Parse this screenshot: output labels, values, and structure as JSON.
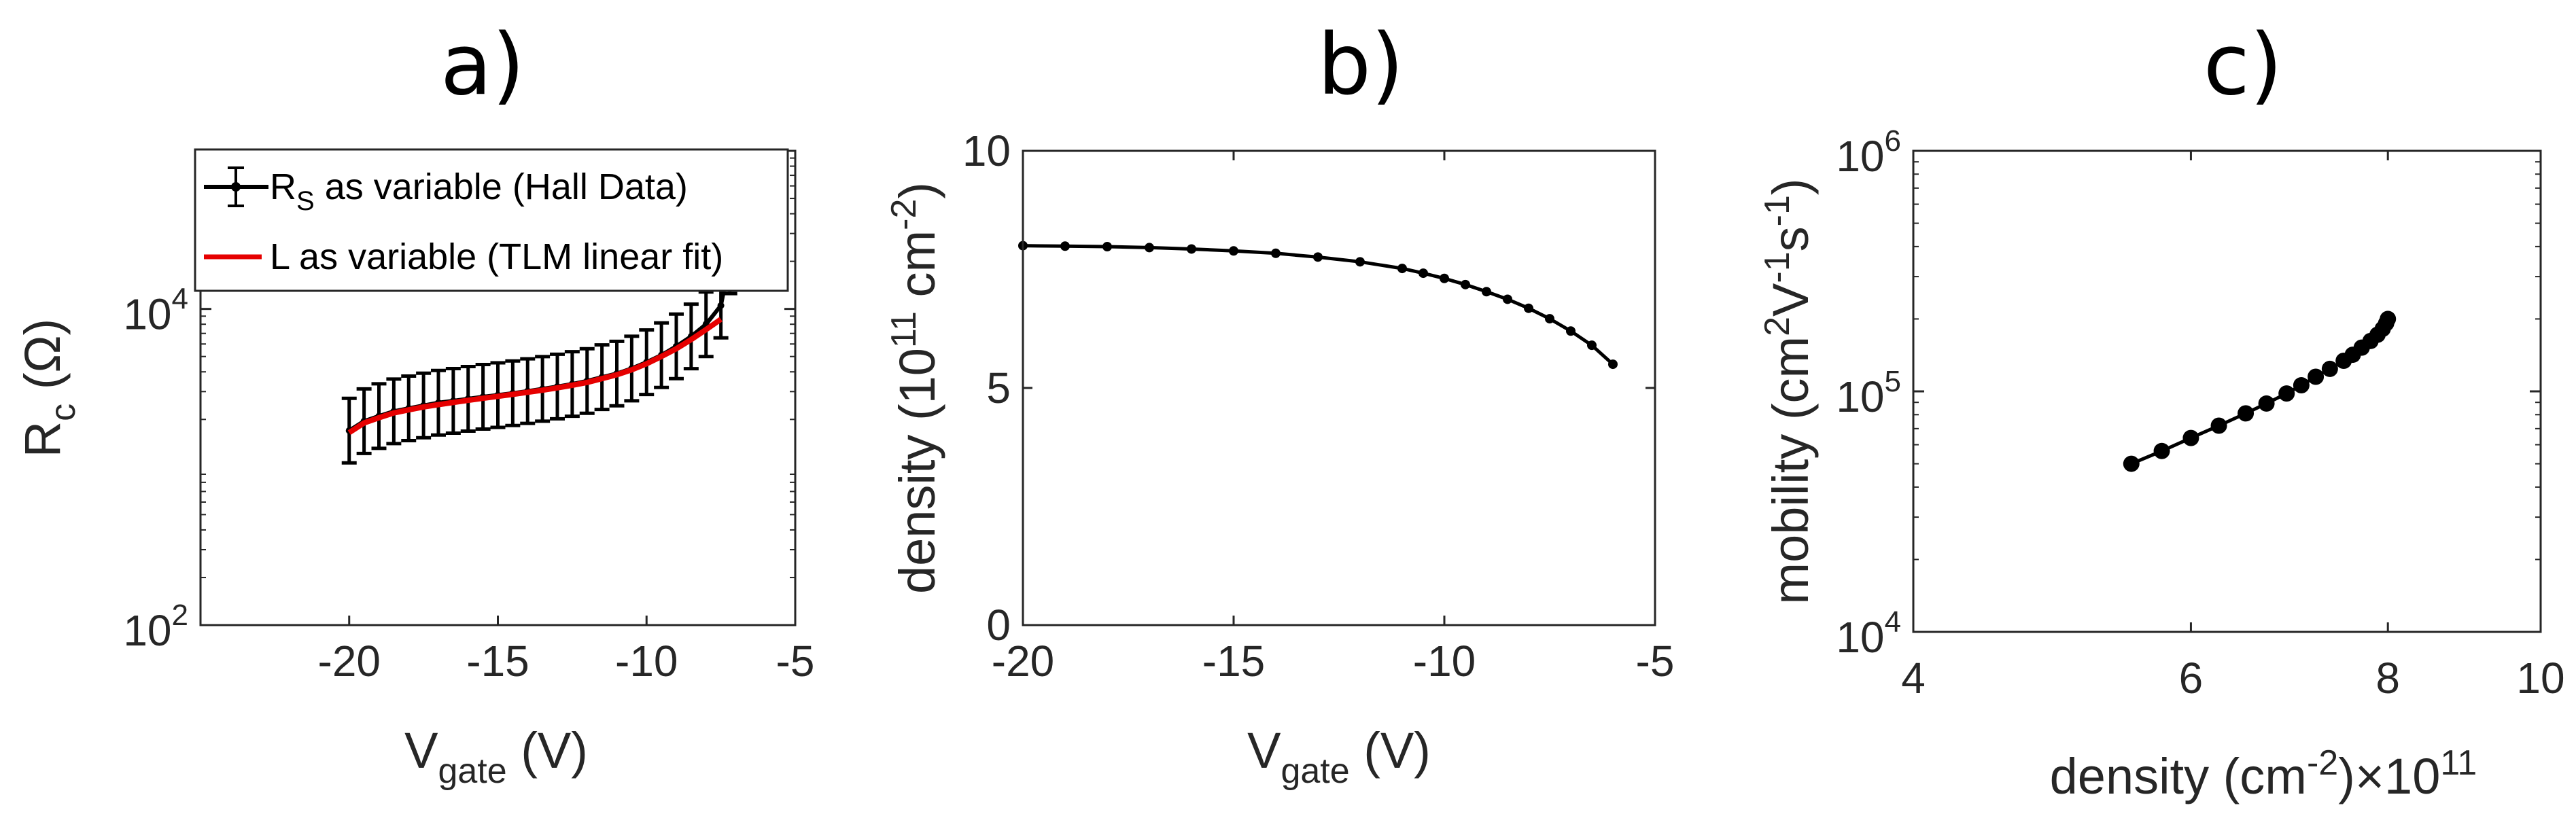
{
  "colors": {
    "axis": "#262626",
    "series_black": "#000000",
    "series_red": "#e60000"
  },
  "chart_data": [
    {
      "panel_label": "a)",
      "type": "line",
      "log_y": true,
      "xlim": [
        -25,
        -5
      ],
      "ylim": [
        100,
        100000
      ],
      "x_ticks": [
        -20,
        -15,
        -10,
        -5
      ],
      "x_tick_labels": [
        "-20",
        "-15",
        "-10",
        "-5"
      ],
      "y_ticks": [
        {
          "value": 100,
          "base": "10",
          "exp": "2"
        },
        {
          "value": 10000,
          "base": "10",
          "exp": "4"
        }
      ],
      "xlabel": {
        "main": "V",
        "sub": "gate",
        "rest": " (V)"
      },
      "ylabel": {
        "main": "R",
        "sub": "c",
        "rest": " (Ω)"
      },
      "legend_position": "top-left",
      "series": [
        {
          "name_main": "R",
          "name_sub": "S",
          "name_rest": " as variable (Hall Data)",
          "style": "errorbar",
          "color": "#000000",
          "x": [
            -20,
            -19.5,
            -19,
            -18.5,
            -18,
            -17.5,
            -17,
            -16.5,
            -16,
            -15.5,
            -15,
            -14.5,
            -14,
            -13.5,
            -13,
            -12.5,
            -12,
            -11.5,
            -11,
            -10.5,
            -10,
            -9.5,
            -9,
            -8.5,
            -8,
            -7.5,
            -7.2,
            -7.0
          ],
          "y": [
            1700,
            1950,
            2100,
            2250,
            2350,
            2450,
            2550,
            2620,
            2700,
            2780,
            2850,
            2930,
            3020,
            3120,
            3230,
            3350,
            3500,
            3700,
            3900,
            4200,
            4600,
            5100,
            5800,
            6700,
            8000,
            10500,
            20000,
            45000
          ],
          "err_factor": 1.6
        },
        {
          "name_main": "L",
          "name_sub": "",
          "name_rest": " as variable (TLM linear fit)",
          "style": "line",
          "color": "#e60000",
          "x": [
            -20,
            -19.5,
            -19,
            -18.5,
            -18,
            -17.5,
            -17,
            -16.5,
            -16,
            -15.5,
            -15,
            -14.5,
            -14,
            -13.5,
            -13,
            -12.5,
            -12,
            -11.5,
            -11,
            -10.5,
            -10,
            -9.5,
            -9,
            -8.5,
            -8,
            -7.5
          ],
          "y": [
            1650,
            1900,
            2050,
            2200,
            2300,
            2400,
            2480,
            2560,
            2640,
            2720,
            2800,
            2880,
            2970,
            3060,
            3170,
            3290,
            3430,
            3620,
            3830,
            4120,
            4500,
            5000,
            5600,
            6400,
            7400,
            8600
          ]
        }
      ]
    },
    {
      "panel_label": "b)",
      "type": "line",
      "log_y": false,
      "xlim": [
        -20,
        -5
      ],
      "ylim": [
        0,
        10
      ],
      "x_ticks": [
        -20,
        -15,
        -10,
        -5
      ],
      "x_tick_labels": [
        "-20",
        "-15",
        "-10",
        "-5"
      ],
      "y_ticks": [
        0,
        5,
        10
      ],
      "y_tick_labels": [
        "0",
        "5",
        "10"
      ],
      "xlabel": {
        "main": "V",
        "sub": "gate",
        "rest": " (V)"
      },
      "ylabel": {
        "pre": "density (10",
        "sup1": "11",
        "mid": " cm",
        "sup2": "-2",
        "post": ")"
      },
      "series": [
        {
          "style": "line-markers",
          "color": "#000000",
          "x": [
            -20,
            -19,
            -18,
            -17,
            -16,
            -15,
            -14,
            -13,
            -12,
            -11,
            -10.5,
            -10,
            -9.5,
            -9,
            -8.5,
            -8,
            -7.5,
            -7,
            -6.5,
            -6
          ],
          "y": [
            8.0,
            7.99,
            7.98,
            7.96,
            7.93,
            7.89,
            7.84,
            7.76,
            7.66,
            7.52,
            7.42,
            7.31,
            7.18,
            7.03,
            6.87,
            6.68,
            6.46,
            6.2,
            5.9,
            5.5
          ]
        }
      ]
    },
    {
      "panel_label": "c)",
      "type": "scatter",
      "log_x": true,
      "log_y": true,
      "xlim": [
        4,
        10
      ],
      "ylim": [
        10000,
        1000000
      ],
      "x_ticks": [
        4,
        6,
        8,
        10
      ],
      "x_tick_labels": [
        "4",
        "6",
        "8",
        "10"
      ],
      "y_ticks": [
        {
          "value": 10000,
          "base": "10",
          "exp": "4"
        },
        {
          "value": 100000,
          "base": "10",
          "exp": "5"
        },
        {
          "value": 1000000,
          "base": "10",
          "exp": "6"
        }
      ],
      "xlabel": {
        "pre": "density (cm",
        "sup1": "-2",
        "post": ")×10",
        "sup2": "11"
      },
      "ylabel": {
        "pre": "mobility (cm",
        "sup1": "2",
        "mid1": "V",
        "sup2": "-1",
        "mid2": "s",
        "sup3": "-1",
        "post": ")"
      },
      "series": [
        {
          "style": "line-markers",
          "color": "#000000",
          "x": [
            5.5,
            5.75,
            6.0,
            6.25,
            6.5,
            6.7,
            6.9,
            7.05,
            7.2,
            7.35,
            7.5,
            7.6,
            7.7,
            7.8,
            7.88,
            7.94,
            7.98,
            8.0
          ],
          "y": [
            50000,
            56500,
            64000,
            72000,
            81000,
            89000,
            98000,
            106000,
            115000,
            124000,
            134000,
            142000,
            152000,
            162000,
            172000,
            182000,
            192000,
            200000
          ]
        }
      ]
    }
  ]
}
